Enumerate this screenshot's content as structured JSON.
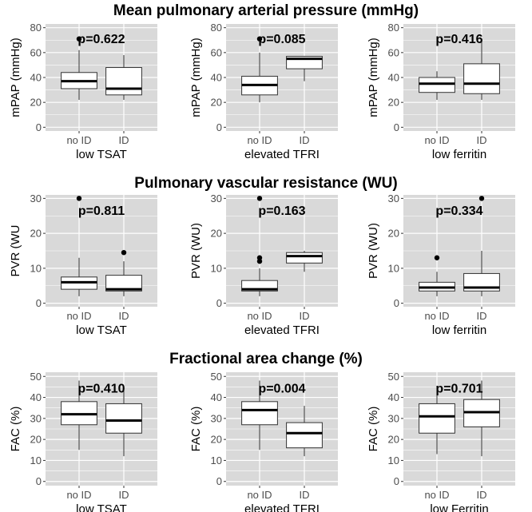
{
  "colors": {
    "panel": "#d9d9d9",
    "grid": "#ffffff",
    "box_fill": "#ffffff",
    "box_line": "#333333",
    "outlier": "#000000",
    "tick_text": "#4d4d4d"
  },
  "row_titles": [
    "Mean pulmonary arterial pressure (mmHg)",
    "Pulmonary vascular resistance (WU)",
    "Fractional area change (%)"
  ],
  "chart_data": [
    {
      "type": "boxplot",
      "row": 0,
      "col": 0,
      "ylabel": "mPAP (mmHg)",
      "xlabel": "low TSAT",
      "categories": [
        "no ID",
        "ID"
      ],
      "ylim": [
        -3,
        83
      ],
      "yticks": [
        0,
        20,
        40,
        60,
        80
      ],
      "pvalue": "p=0.622",
      "boxes": [
        {
          "min": 22,
          "q1": 31,
          "median": 37,
          "q3": 44,
          "max": 62,
          "outliers": [
            71
          ]
        },
        {
          "min": 22,
          "q1": 26,
          "median": 31,
          "q3": 48,
          "max": 58,
          "outliers": []
        }
      ]
    },
    {
      "type": "boxplot",
      "row": 0,
      "col": 1,
      "ylabel": "mPAP (mmHg)",
      "xlabel": "elevated TFRI",
      "categories": [
        "no ID",
        "ID"
      ],
      "ylim": [
        -3,
        83
      ],
      "yticks": [
        0,
        20,
        40,
        60,
        80
      ],
      "pvalue": "p=0.085",
      "boxes": [
        {
          "min": 20,
          "q1": 26,
          "median": 34,
          "q3": 41,
          "max": 60,
          "outliers": [
            71
          ]
        },
        {
          "min": 37,
          "q1": 47,
          "median": 55,
          "q3": 57,
          "max": 57,
          "outliers": []
        }
      ]
    },
    {
      "type": "boxplot",
      "row": 0,
      "col": 2,
      "ylabel": "mPAP (mmHg)",
      "xlabel": "low ferritin",
      "categories": [
        "no ID",
        "ID"
      ],
      "ylim": [
        -3,
        83
      ],
      "yticks": [
        0,
        20,
        40,
        60,
        80
      ],
      "pvalue": "p=0.416",
      "boxes": [
        {
          "min": 22,
          "q1": 28,
          "median": 35,
          "q3": 40,
          "max": 45,
          "outliers": []
        },
        {
          "min": 22,
          "q1": 27,
          "median": 35,
          "q3": 51,
          "max": 71,
          "outliers": []
        }
      ]
    },
    {
      "type": "boxplot",
      "row": 1,
      "col": 0,
      "ylabel": "PVR (WU",
      "xlabel": "low TSAT",
      "categories": [
        "no ID",
        "ID"
      ],
      "ylim": [
        -1,
        31
      ],
      "yticks": [
        0,
        10,
        20,
        30
      ],
      "pvalue": "p=0.811",
      "boxes": [
        {
          "min": 2,
          "q1": 4,
          "median": 6,
          "q3": 7.5,
          "max": 13,
          "outliers": [
            30
          ]
        },
        {
          "min": 2,
          "q1": 3.5,
          "median": 4,
          "q3": 8,
          "max": 12,
          "outliers": [
            14.5
          ]
        }
      ]
    },
    {
      "type": "boxplot",
      "row": 1,
      "col": 1,
      "ylabel": "PVR (WU)",
      "xlabel": "elevated TFRI",
      "categories": [
        "no ID",
        "ID"
      ],
      "ylim": [
        -1,
        31
      ],
      "yticks": [
        0,
        10,
        20,
        30
      ],
      "pvalue": "p=0.163",
      "boxes": [
        {
          "min": 2,
          "q1": 3.5,
          "median": 4,
          "q3": 6.5,
          "max": 10,
          "outliers": [
            12,
            13,
            30
          ]
        },
        {
          "min": 9,
          "q1": 11.5,
          "median": 13.5,
          "q3": 14.5,
          "max": 15,
          "outliers": []
        }
      ]
    },
    {
      "type": "boxplot",
      "row": 1,
      "col": 2,
      "ylabel": "PVR (WU)",
      "xlabel": "low ferritin",
      "categories": [
        "no ID",
        "ID"
      ],
      "ylim": [
        -1,
        31
      ],
      "yticks": [
        0,
        10,
        20,
        30
      ],
      "pvalue": "p=0.334",
      "boxes": [
        {
          "min": 2,
          "q1": 3.5,
          "median": 4.5,
          "q3": 6,
          "max": 9,
          "outliers": [
            13
          ]
        },
        {
          "min": 2,
          "q1": 3.5,
          "median": 4.5,
          "q3": 8.5,
          "max": 15,
          "outliers": [
            30
          ]
        }
      ]
    },
    {
      "type": "boxplot",
      "row": 2,
      "col": 0,
      "ylabel": "FAC (%)",
      "xlabel": "low TSAT",
      "categories": [
        "no ID",
        "ID"
      ],
      "ylim": [
        -2,
        52
      ],
      "yticks": [
        0,
        10,
        20,
        30,
        40,
        50
      ],
      "pvalue": "p=0.410",
      "boxes": [
        {
          "min": 15,
          "q1": 27,
          "median": 32,
          "q3": 38,
          "max": 48,
          "outliers": []
        },
        {
          "min": 12,
          "q1": 23,
          "median": 29,
          "q3": 37,
          "max": 44,
          "outliers": []
        }
      ]
    },
    {
      "type": "boxplot",
      "row": 2,
      "col": 1,
      "ylabel": "FAC (%)",
      "xlabel": "elevated TFRI",
      "categories": [
        "no ID",
        "ID"
      ],
      "ylim": [
        -2,
        52
      ],
      "yticks": [
        0,
        10,
        20,
        30,
        40,
        50
      ],
      "pvalue": "p=0.004",
      "boxes": [
        {
          "min": 15,
          "q1": 27,
          "median": 34,
          "q3": 38,
          "max": 48,
          "outliers": []
        },
        {
          "min": 12,
          "q1": 16,
          "median": 23,
          "q3": 28,
          "max": 36,
          "outliers": []
        }
      ]
    },
    {
      "type": "boxplot",
      "row": 2,
      "col": 2,
      "ylabel": "FAC (%)",
      "xlabel": "low Ferritin",
      "categories": [
        "no ID",
        "ID"
      ],
      "ylim": [
        -2,
        52
      ],
      "yticks": [
        0,
        10,
        20,
        30,
        40,
        50
      ],
      "pvalue": "p=0.701",
      "boxes": [
        {
          "min": 13,
          "q1": 23,
          "median": 31,
          "q3": 37,
          "max": 43,
          "outliers": []
        },
        {
          "min": 12,
          "q1": 26,
          "median": 33,
          "q3": 39,
          "max": 48,
          "outliers": []
        }
      ]
    }
  ]
}
